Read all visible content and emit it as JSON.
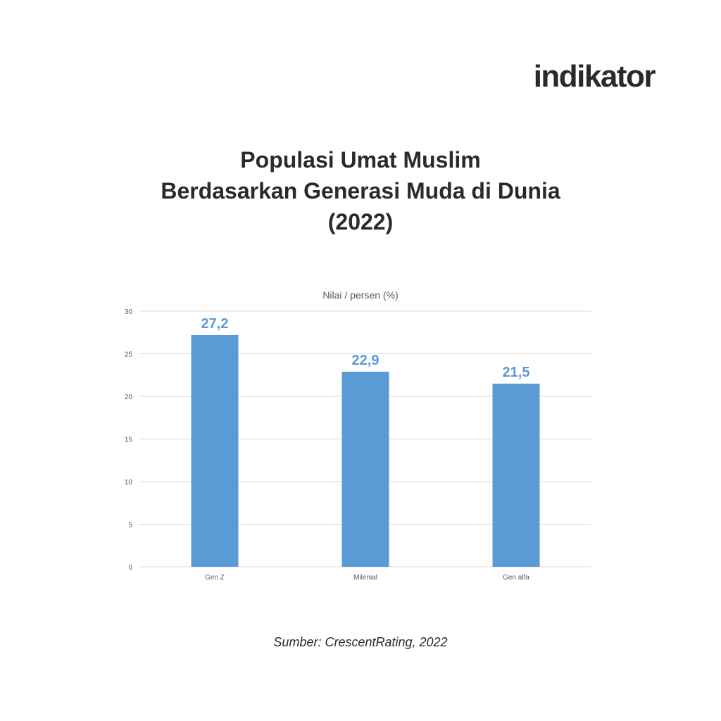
{
  "brand": "indikator",
  "title_lines": [
    "Populasi Umat Muslim",
    "Berdasarkan Generasi Muda di Dunia",
    "(2022)"
  ],
  "source": "Sumber: CrescentRating, 2022",
  "chart_data": {
    "type": "bar",
    "subtitle": "Nilai / persen (%)",
    "categories": [
      "Gen Z",
      "Milenial",
      "Gen alfa"
    ],
    "values": [
      27.2,
      22.9,
      21.5
    ],
    "value_labels": [
      "27,2",
      "22,9",
      "21,5"
    ],
    "ylim": [
      0,
      30
    ],
    "yticks": [
      0,
      5,
      10,
      15,
      20,
      25,
      30
    ],
    "grid": true,
    "colors": {
      "bar": "#5b9bd5",
      "value_label": "#5b9bd5",
      "grid": "#d9d9d9",
      "tick_label": "#595959"
    }
  }
}
